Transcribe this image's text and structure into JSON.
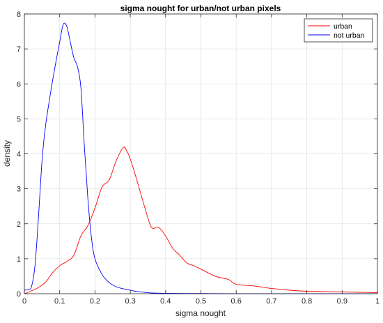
{
  "chart_data": {
    "type": "line",
    "title": "sigma nought for urban/not urban pixels",
    "xlabel": "sigma nought",
    "ylabel": "density",
    "xlim": [
      0,
      1
    ],
    "ylim": [
      0,
      8
    ],
    "xticks": [
      0,
      0.1,
      0.2,
      0.3,
      0.4,
      0.5,
      0.6,
      0.7,
      0.8,
      0.9,
      1
    ],
    "xtick_labels": [
      "0",
      "0.1",
      "0.2",
      "0.3",
      "0.4",
      "0.5",
      "0.6",
      "0.7",
      "0.8",
      "0.9",
      "1"
    ],
    "yticks": [
      0,
      1,
      2,
      3,
      4,
      5,
      6,
      7,
      8
    ],
    "ytick_labels": [
      "0",
      "1",
      "2",
      "3",
      "4",
      "5",
      "6",
      "7",
      "8"
    ],
    "grid": true,
    "legend_position": "top-right",
    "series": [
      {
        "name": "urban",
        "color": "#ff0000",
        "x": [
          0,
          0.02,
          0.04,
          0.06,
          0.08,
          0.1,
          0.12,
          0.14,
          0.16,
          0.18,
          0.2,
          0.22,
          0.24,
          0.26,
          0.28,
          0.29,
          0.3,
          0.32,
          0.34,
          0.36,
          0.38,
          0.4,
          0.42,
          0.44,
          0.46,
          0.48,
          0.5,
          0.52,
          0.54,
          0.56,
          0.58,
          0.6,
          0.65,
          0.7,
          0.75,
          0.8,
          0.85,
          0.9,
          0.95,
          1.0
        ],
        "y": [
          0.0,
          0.08,
          0.18,
          0.33,
          0.6,
          0.8,
          0.92,
          1.1,
          1.65,
          1.95,
          2.45,
          3.05,
          3.25,
          3.8,
          4.18,
          4.08,
          3.85,
          3.2,
          2.5,
          1.9,
          1.9,
          1.65,
          1.3,
          1.1,
          0.88,
          0.8,
          0.7,
          0.6,
          0.5,
          0.45,
          0.4,
          0.27,
          0.22,
          0.15,
          0.1,
          0.07,
          0.06,
          0.05,
          0.04,
          0.03
        ]
      },
      {
        "name": "not urban",
        "color": "#0000ff",
        "x": [
          0,
          0.01,
          0.02,
          0.03,
          0.04,
          0.05,
          0.06,
          0.08,
          0.1,
          0.11,
          0.12,
          0.13,
          0.14,
          0.15,
          0.16,
          0.17,
          0.18,
          0.19,
          0.2,
          0.22,
          0.24,
          0.26,
          0.28,
          0.3,
          0.32,
          0.34,
          0.36,
          0.4,
          0.5,
          0.6,
          0.8,
          1.0
        ],
        "y": [
          0.1,
          0.12,
          0.2,
          0.8,
          2.2,
          3.8,
          4.8,
          6.1,
          7.2,
          7.7,
          7.65,
          7.2,
          6.75,
          6.5,
          5.9,
          4.2,
          2.7,
          1.6,
          1.0,
          0.55,
          0.32,
          0.2,
          0.14,
          0.1,
          0.06,
          0.04,
          0.02,
          0.01,
          0.005,
          0.0,
          0.0,
          0.0
        ]
      }
    ]
  }
}
